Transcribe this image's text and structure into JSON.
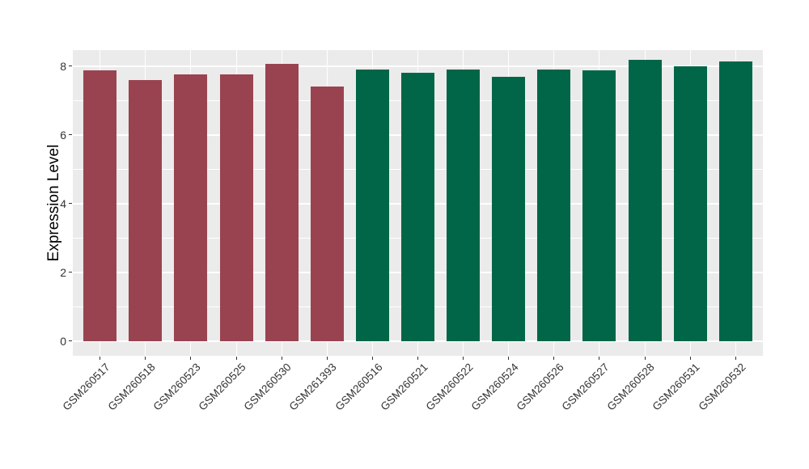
{
  "chart_data": {
    "type": "bar",
    "title": "",
    "xlabel": "",
    "ylabel": "Expression Level",
    "categories": [
      "GSM260517",
      "GSM260518",
      "GSM260523",
      "GSM260525",
      "GSM260530",
      "GSM261393",
      "GSM260516",
      "GSM260521",
      "GSM260522",
      "GSM260524",
      "GSM260526",
      "GSM260527",
      "GSM260528",
      "GSM260531",
      "GSM260532"
    ],
    "values": [
      7.87,
      7.6,
      7.77,
      7.76,
      8.06,
      7.4,
      7.91,
      7.8,
      7.91,
      7.68,
      7.9,
      7.88,
      8.18,
      8.0,
      8.13
    ],
    "bar_colors": [
      "#9A4350",
      "#9A4350",
      "#9A4350",
      "#9A4350",
      "#9A4350",
      "#9A4350",
      "#006647",
      "#006647",
      "#006647",
      "#006647",
      "#006647",
      "#006647",
      "#006647",
      "#006647",
      "#006647"
    ],
    "yticks": [
      0,
      2,
      4,
      6,
      8
    ],
    "minor_yticks": [
      1,
      3,
      5,
      7
    ],
    "ylim": [
      -0.43,
      8.48
    ],
    "x_tick_rotation": 45,
    "grid": true,
    "legend": "none"
  },
  "colors": {
    "background": "#FFFFFF",
    "panel_background": "#EBEBEB",
    "gridline": "#FFFFFF",
    "bar_group_red": "#9A4350",
    "bar_group_green": "#006647",
    "axis_text": "#333333",
    "axis_title": "#000000",
    "tick_mark": "#333333"
  }
}
